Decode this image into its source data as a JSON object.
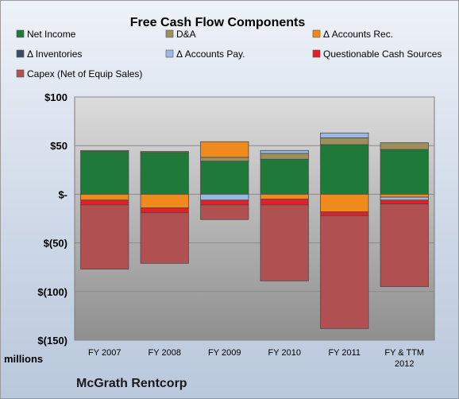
{
  "chart_data": {
    "type": "bar",
    "stacked": true,
    "title": "Free Cash Flow Components",
    "unit_label": "millions",
    "company": "McGrath Rentcorp",
    "categories": [
      "FY 2007",
      "FY 2008",
      "FY 2009",
      "FY 2010",
      "FY 2011",
      "FY & TTM 2012"
    ],
    "ylim": [
      -150,
      100
    ],
    "yticks": [
      {
        "value": 100,
        "label": "$100"
      },
      {
        "value": 50,
        "label": "$50"
      },
      {
        "value": 0,
        "label": "$-"
      },
      {
        "value": -50,
        "label": "$(50)"
      },
      {
        "value": -100,
        "label": "$(100)"
      },
      {
        "value": -150,
        "label": "$(150)"
      }
    ],
    "legend_position": "top",
    "series": [
      {
        "name": "Net Income",
        "color": "#1f7a3a",
        "values": [
          44,
          43,
          34,
          36,
          51,
          46
        ]
      },
      {
        "name": "D&A",
        "color": "#9c8f5c",
        "values": [
          1,
          1,
          4,
          6,
          7,
          7
        ]
      },
      {
        "name": "Δ Accounts Rec.",
        "color": "#f08a1c",
        "values": [
          -6,
          -14,
          16,
          -5,
          -18,
          -3
        ]
      },
      {
        "name": "Δ Inventories",
        "color": "#3a4c66",
        "values": [
          0,
          0,
          0,
          0,
          0,
          0
        ]
      },
      {
        "name": "Δ Accounts Pay.",
        "color": "#9ab9e0",
        "values": [
          0,
          0,
          -6,
          3,
          5,
          -3
        ]
      },
      {
        "name": "Questionable Cash Sources",
        "color": "#e41f26",
        "values": [
          -5,
          -5,
          -5,
          -6,
          -4,
          -4
        ]
      },
      {
        "name": "Capex (Net of Equip Sales)",
        "color": "#b05050",
        "values": [
          -66,
          -52,
          -15,
          -78,
          -116,
          -85
        ]
      }
    ]
  }
}
